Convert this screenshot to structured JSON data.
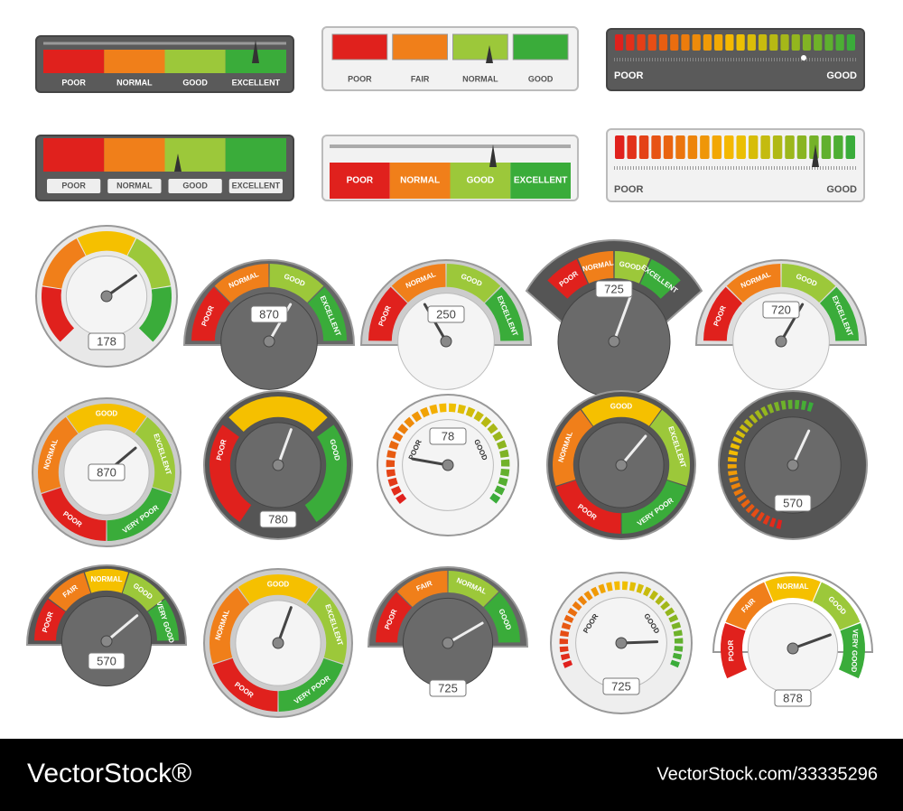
{
  "widgets": [
    {
      "labels": [
        "POOR",
        "NORMAL",
        "GOOD",
        "EXCELLENT"
      ]
    },
    {
      "labels": [
        "POOR",
        "FAIR",
        "NORMAL",
        "GOOD"
      ]
    },
    {
      "labels": [
        "POOR",
        "GOOD"
      ]
    },
    {
      "labels": [
        "POOR",
        "NORMAL",
        "GOOD",
        "EXCELLENT"
      ]
    },
    {
      "labels": [
        "POOR",
        "NORMAL",
        "GOOD",
        "EXCELLENT"
      ]
    },
    {
      "labels": [
        "POOR",
        "GOOD"
      ]
    },
    {
      "labels": [],
      "reading": "178"
    },
    {
      "labels": [
        "POOR",
        "NORMAL",
        "GOOD",
        "EXCELLENT"
      ],
      "reading": "870"
    },
    {
      "labels": [
        "POOR",
        "NORMAL",
        "GOOD",
        "EXCELLENT"
      ],
      "reading": "250"
    },
    {
      "labels": [
        "POOR",
        "NORMAL",
        "GOOD",
        "EXCELLENT"
      ],
      "reading": "725"
    },
    {
      "labels": [
        "POOR",
        "NORMAL",
        "GOOD",
        "EXCELLENT"
      ],
      "reading": "720"
    },
    {
      "labels": [
        "POOR",
        "NORMAL",
        "GOOD",
        "EXCELLENT",
        "VERY POOR"
      ],
      "reading": "870"
    },
    {
      "labels": [
        "POOR",
        "GOOD"
      ],
      "reading": "780"
    },
    {
      "labels": [
        "POOR",
        "GOOD"
      ],
      "reading": "78"
    },
    {
      "labels": [
        "POOR",
        "NORMAL",
        "GOOD",
        "EXCELLENT",
        "VERY POOR"
      ]
    },
    {
      "labels": [],
      "reading": "570"
    },
    {
      "labels": [
        "POOR",
        "FAIR",
        "NORMAL",
        "GOOD",
        "VERY GOOD"
      ],
      "reading": "570"
    },
    {
      "labels": [
        "POOR",
        "NORMAL",
        "GOOD",
        "EXCELLENT",
        "VERY POOR"
      ]
    },
    {
      "labels": [
        "POOR",
        "FAIR",
        "NORMAL",
        "GOOD"
      ],
      "reading": "725"
    },
    {
      "labels": [
        "POOR",
        "GOOD"
      ],
      "reading": "725"
    },
    {
      "labels": [
        "POOR",
        "FAIR",
        "NORMAL",
        "GOOD",
        "VERY GOOD"
      ],
      "reading": "878"
    }
  ],
  "footer": {
    "brand": "VectorStock®",
    "id": "VectorStock.com/33335296"
  }
}
